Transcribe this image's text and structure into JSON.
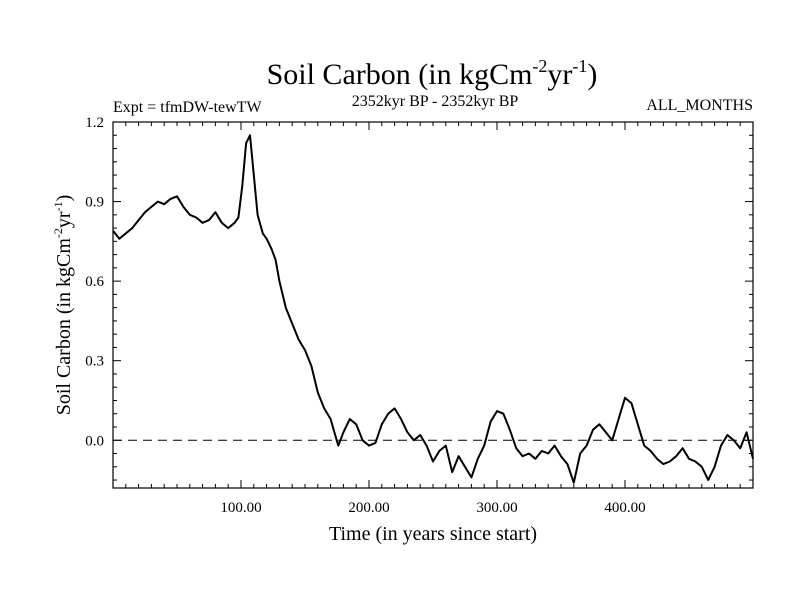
{
  "chart_data": {
    "type": "line",
    "title": {
      "main": "Soil Carbon (in kgCm",
      "sup1": "-2",
      "mid": "yr",
      "sup2": "-1",
      "end": ")"
    },
    "subtitle_left": "Expt = tfmDW-tewTW",
    "subtitle_center": "2352kyr BP - 2352kyr BP",
    "subtitle_right": "ALL_MONTHS",
    "xlabel": "Time (in years since start)",
    "ylabel": {
      "main": "Soil Carbon (in kgCm",
      "sup1": "-2",
      "mid": "yr",
      "sup2": "-1",
      "end": ")"
    },
    "xlim": [
      0,
      500
    ],
    "ylim": [
      -0.18,
      1.2
    ],
    "x_ticks": [
      100,
      200,
      300,
      400
    ],
    "x_tick_labels": [
      "100.00",
      "200.00",
      "300.00",
      "400.00"
    ],
    "y_ticks": [
      0.0,
      0.3,
      0.6,
      0.9,
      1.2
    ],
    "y_tick_labels": [
      "0.0",
      "0.3",
      "0.6",
      "0.9",
      "1.2"
    ],
    "reference_line": {
      "y": 0.0,
      "style": "dashed"
    },
    "grid": false,
    "series": [
      {
        "name": "Soil Carbon",
        "color": "#000000",
        "x": [
          0,
          5,
          10,
          15,
          20,
          25,
          30,
          35,
          40,
          45,
          50,
          55,
          60,
          65,
          70,
          75,
          80,
          85,
          90,
          95,
          98,
          101,
          104,
          107,
          110,
          113,
          117,
          120,
          124,
          127,
          130,
          135,
          140,
          145,
          150,
          155,
          160,
          165,
          170,
          173,
          176,
          180,
          185,
          190,
          195,
          200,
          205,
          210,
          215,
          220,
          225,
          230,
          235,
          240,
          245,
          250,
          255,
          260,
          265,
          270,
          275,
          280,
          285,
          290,
          295,
          300,
          305,
          310,
          315,
          320,
          325,
          330,
          335,
          340,
          345,
          350,
          355,
          360,
          365,
          370,
          375,
          380,
          385,
          390,
          395,
          400,
          405,
          410,
          415,
          420,
          425,
          430,
          435,
          440,
          445,
          450,
          455,
          460,
          465,
          470,
          475,
          480,
          485,
          490,
          495,
          500
        ],
        "values": [
          0.79,
          0.76,
          0.78,
          0.8,
          0.83,
          0.86,
          0.88,
          0.9,
          0.89,
          0.91,
          0.92,
          0.88,
          0.85,
          0.84,
          0.82,
          0.83,
          0.86,
          0.82,
          0.8,
          0.82,
          0.84,
          0.96,
          1.12,
          1.15,
          1.0,
          0.85,
          0.78,
          0.76,
          0.72,
          0.68,
          0.6,
          0.5,
          0.44,
          0.38,
          0.34,
          0.28,
          0.18,
          0.12,
          0.08,
          0.03,
          -0.02,
          0.03,
          0.08,
          0.06,
          0.0,
          -0.02,
          -0.01,
          0.06,
          0.1,
          0.12,
          0.08,
          0.03,
          0.0,
          0.02,
          -0.02,
          -0.08,
          -0.04,
          -0.02,
          -0.12,
          -0.06,
          -0.1,
          -0.14,
          -0.07,
          -0.02,
          0.07,
          0.11,
          0.1,
          0.04,
          -0.03,
          -0.06,
          -0.05,
          -0.07,
          -0.04,
          -0.05,
          -0.02,
          -0.06,
          -0.09,
          -0.16,
          -0.05,
          -0.02,
          0.04,
          0.06,
          0.03,
          0.0,
          0.08,
          0.16,
          0.14,
          0.06,
          -0.02,
          -0.04,
          -0.07,
          -0.09,
          -0.08,
          -0.06,
          -0.03,
          -0.07,
          -0.08,
          -0.1,
          -0.15,
          -0.1,
          -0.02,
          0.02,
          0.0,
          -0.03,
          0.03,
          -0.07
        ]
      }
    ]
  }
}
